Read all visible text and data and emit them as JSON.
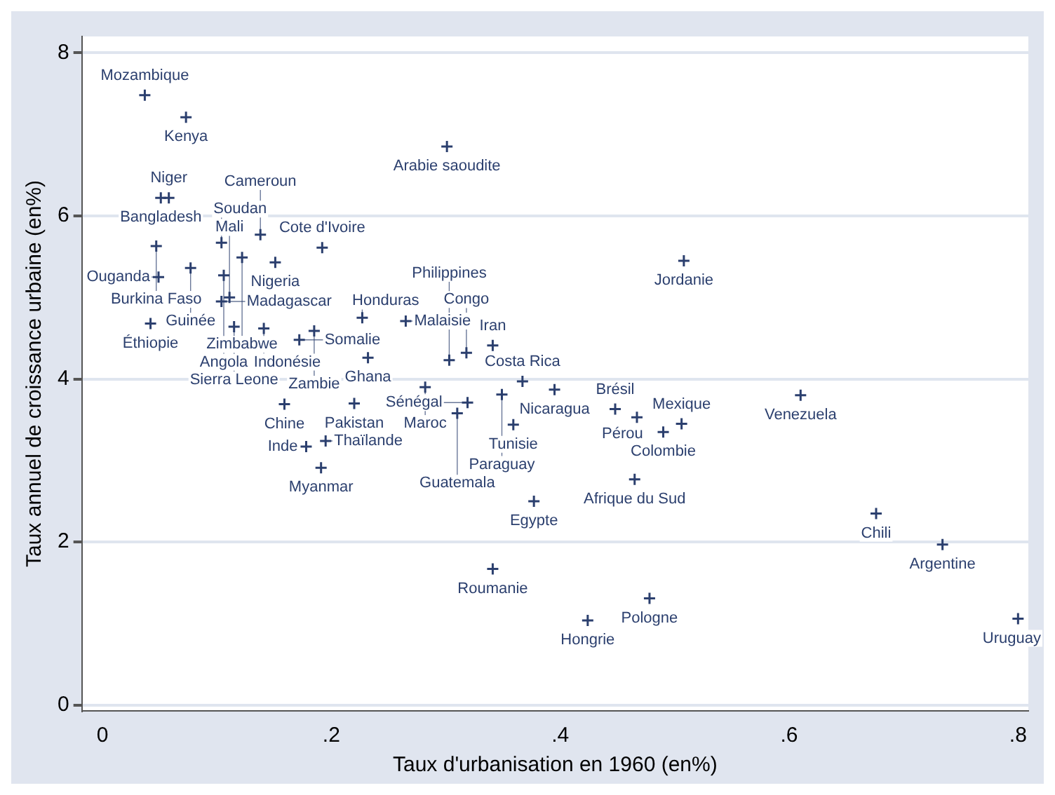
{
  "chart_data": {
    "type": "scatter",
    "xlabel": "Taux d'urbanisation en 1960 (en%)",
    "ylabel": "Taux annuel de croissance urbaine (en%)",
    "color": "#2b3f6e",
    "marker": "cross",
    "grid": "y",
    "xlim": [
      -0.018,
      0.809
    ],
    "ylim": [
      -0.07,
      8.2
    ],
    "xticks": [
      0,
      {
        "value": 0.2,
        "label": ".2"
      },
      {
        "value": 0.4,
        "label": ".4"
      },
      {
        "value": 0.6,
        "label": ".6"
      },
      {
        "value": 0.8,
        "label": ".8"
      }
    ],
    "yticks": [
      0,
      2,
      4,
      6,
      8
    ],
    "x": [
      0.037,
      0.073,
      0.051,
      0.058,
      0.047,
      0.049,
      0.104,
      0.138,
      0.192,
      0.122,
      0.151,
      0.077,
      0.106,
      0.042,
      0.104,
      0.111,
      0.115,
      0.141,
      0.185,
      0.172,
      0.227,
      0.265,
      0.232,
      0.159,
      0.22,
      0.195,
      0.178,
      0.191,
      0.301,
      0.508,
      0.61,
      0.676,
      0.734,
      0.8,
      0.478,
      0.424,
      0.341,
      0.377,
      0.465,
      0.448,
      0.467,
      0.49,
      0.506,
      0.359,
      0.395,
      0.367,
      0.349,
      0.319,
      0.31,
      0.282,
      0.341,
      0.318,
      0.303
    ],
    "values": [
      7.48,
      7.21,
      6.22,
      6.22,
      5.63,
      5.25,
      5.67,
      5.77,
      5.61,
      5.49,
      5.43,
      5.36,
      5.27,
      4.68,
      4.95,
      5.0,
      4.64,
      4.62,
      4.59,
      4.48,
      4.75,
      4.71,
      4.26,
      3.69,
      3.7,
      3.24,
      3.17,
      2.91,
      6.85,
      5.45,
      3.8,
      2.35,
      1.97,
      1.06,
      1.31,
      1.04,
      1.67,
      2.5,
      2.77,
      3.63,
      3.53,
      3.35,
      3.45,
      3.44,
      3.87,
      3.97,
      3.81,
      3.71,
      3.58,
      3.9,
      4.41,
      4.32,
      4.23
    ],
    "annotations": [
      {
        "text": "Mozambique",
        "x": 0.037,
        "y": 7.48
      },
      {
        "text": "Kenya",
        "x": 0.073,
        "y": 7.21
      },
      {
        "text": "Bangladesh",
        "x": 0.051,
        "y": 6.22
      },
      {
        "text": "Niger",
        "x": 0.058,
        "y": 6.22
      },
      {
        "text": "Burkina Faso",
        "x": 0.047,
        "y": 5.63
      },
      {
        "text": "Ouganda",
        "x": 0.049,
        "y": 5.25
      },
      {
        "text": "Soudan",
        "x": 0.104,
        "y": 5.67
      },
      {
        "text": "Cameroun",
        "x": 0.138,
        "y": 5.77
      },
      {
        "text": "Cote d'Ivoire",
        "x": 0.192,
        "y": 5.61
      },
      {
        "text": "Zimbabwe",
        "x": 0.122,
        "y": 5.49
      },
      {
        "text": "Nigeria",
        "x": 0.151,
        "y": 5.43
      },
      {
        "text": "Guinée",
        "x": 0.077,
        "y": 5.36
      },
      {
        "text": "Angola",
        "x": 0.106,
        "y": 5.27
      },
      {
        "text": "Éthiopie",
        "x": 0.042,
        "y": 4.68
      },
      {
        "text": "Madagascar",
        "x": 0.104,
        "y": 4.95
      },
      {
        "text": "Mali",
        "x": 0.111,
        "y": 5.0
      },
      {
        "text": "Sierra Leone",
        "x": 0.115,
        "y": 4.64
      },
      {
        "text": "Indonésie",
        "x": 0.141,
        "y": 4.62
      },
      {
        "text": "Zambie",
        "x": 0.185,
        "y": 4.59
      },
      {
        "text": "Somalie",
        "x": 0.172,
        "y": 4.48
      },
      {
        "text": "Honduras",
        "x": 0.227,
        "y": 4.75
      },
      {
        "text": "Malaisie",
        "x": 0.265,
        "y": 4.71
      },
      {
        "text": "Ghana",
        "x": 0.232,
        "y": 4.26
      },
      {
        "text": "Chine",
        "x": 0.159,
        "y": 3.69
      },
      {
        "text": "Pakistan",
        "x": 0.22,
        "y": 3.7
      },
      {
        "text": "Thaïlande",
        "x": 0.195,
        "y": 3.24
      },
      {
        "text": "Inde",
        "x": 0.178,
        "y": 3.17
      },
      {
        "text": "Myanmar",
        "x": 0.191,
        "y": 2.91
      },
      {
        "text": "Arabie saoudite",
        "x": 0.301,
        "y": 6.85
      },
      {
        "text": "Jordanie",
        "x": 0.508,
        "y": 5.45
      },
      {
        "text": "Venezuela",
        "x": 0.61,
        "y": 3.8
      },
      {
        "text": "Chili",
        "x": 0.676,
        "y": 2.35
      },
      {
        "text": "Argentine",
        "x": 0.734,
        "y": 1.97
      },
      {
        "text": "Uruguay",
        "x": 0.8,
        "y": 1.06
      },
      {
        "text": "Pologne",
        "x": 0.478,
        "y": 1.31
      },
      {
        "text": "Hongrie",
        "x": 0.424,
        "y": 1.04
      },
      {
        "text": "Roumanie",
        "x": 0.341,
        "y": 1.67
      },
      {
        "text": "Egypte",
        "x": 0.377,
        "y": 2.5
      },
      {
        "text": "Afrique du Sud",
        "x": 0.465,
        "y": 2.77
      },
      {
        "text": "Brésil",
        "x": 0.448,
        "y": 3.63
      },
      {
        "text": "Pérou",
        "x": 0.467,
        "y": 3.53
      },
      {
        "text": "Colombie",
        "x": 0.49,
        "y": 3.35
      },
      {
        "text": "Mexique",
        "x": 0.506,
        "y": 3.45
      },
      {
        "text": "Tunisie",
        "x": 0.359,
        "y": 3.44
      },
      {
        "text": "Nicaragua",
        "x": 0.395,
        "y": 3.87
      },
      {
        "text": "Costa Rica",
        "x": 0.367,
        "y": 3.97
      },
      {
        "text": "Paraguay",
        "x": 0.349,
        "y": 3.81
      },
      {
        "text": "Sénégal",
        "x": 0.319,
        "y": 3.71
      },
      {
        "text": "Guatemala",
        "x": 0.31,
        "y": 3.58
      },
      {
        "text": "Maroc",
        "x": 0.282,
        "y": 3.9
      },
      {
        "text": "Iran",
        "x": 0.341,
        "y": 4.41
      },
      {
        "text": "Congo",
        "x": 0.318,
        "y": 4.32
      },
      {
        "text": "Philippines",
        "x": 0.303,
        "y": 4.23
      }
    ]
  }
}
